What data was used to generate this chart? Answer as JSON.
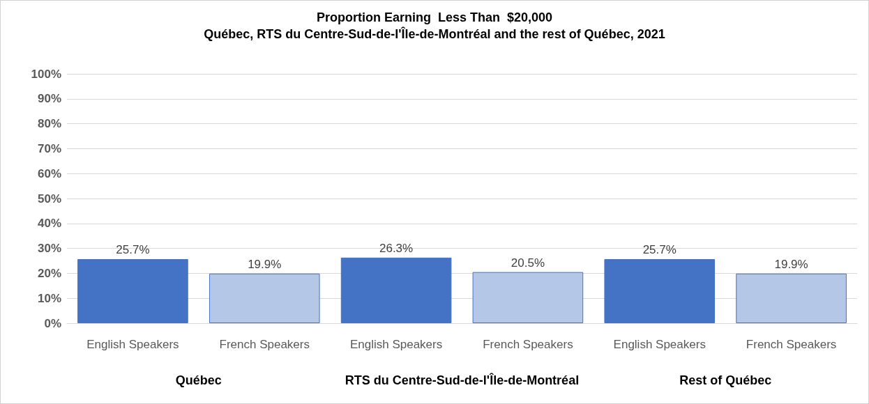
{
  "chart_data": {
    "type": "bar",
    "title": "Proportion Earning  Less Than  $20,000",
    "subtitle": "Québec, RTS du Centre-Sud-de-l'Île-de-Montréal and the rest of Québec, 2021",
    "categories": [
      "English Speakers",
      "French Speakers",
      "English Speakers",
      "French Speakers",
      "English Speakers",
      "French Speakers"
    ],
    "values": [
      25.7,
      19.9,
      26.3,
      20.5,
      25.7,
      19.9
    ],
    "colors": [
      "#4472c4",
      "#b4c7e7",
      "#4472c4",
      "#b4c7e7",
      "#4472c4",
      "#b4c7e7"
    ],
    "value_labels": [
      "25.7%",
      "19.9%",
      "26.3%",
      "20.5%",
      "25.7%",
      "19.9%"
    ],
    "annotations": [
      "Québec",
      "RTS du Centre-Sud-de-l'Île-de-Montréal",
      "Rest of Québec"
    ],
    "ylim": [
      0,
      100
    ],
    "yticks": [
      {
        "value": 0,
        "label": "0%"
      },
      {
        "value": 10,
        "label": "10%"
      },
      {
        "value": 20,
        "label": "20%"
      },
      {
        "value": 30,
        "label": "30%"
      },
      {
        "value": 40,
        "label": "40%"
      },
      {
        "value": 50,
        "label": "50%"
      },
      {
        "value": 60,
        "label": "60%"
      },
      {
        "value": 70,
        "label": "70%"
      },
      {
        "value": 80,
        "label": "80%"
      },
      {
        "value": 90,
        "label": "90%"
      },
      {
        "value": 100,
        "label": "100%"
      }
    ],
    "grid": "y"
  }
}
